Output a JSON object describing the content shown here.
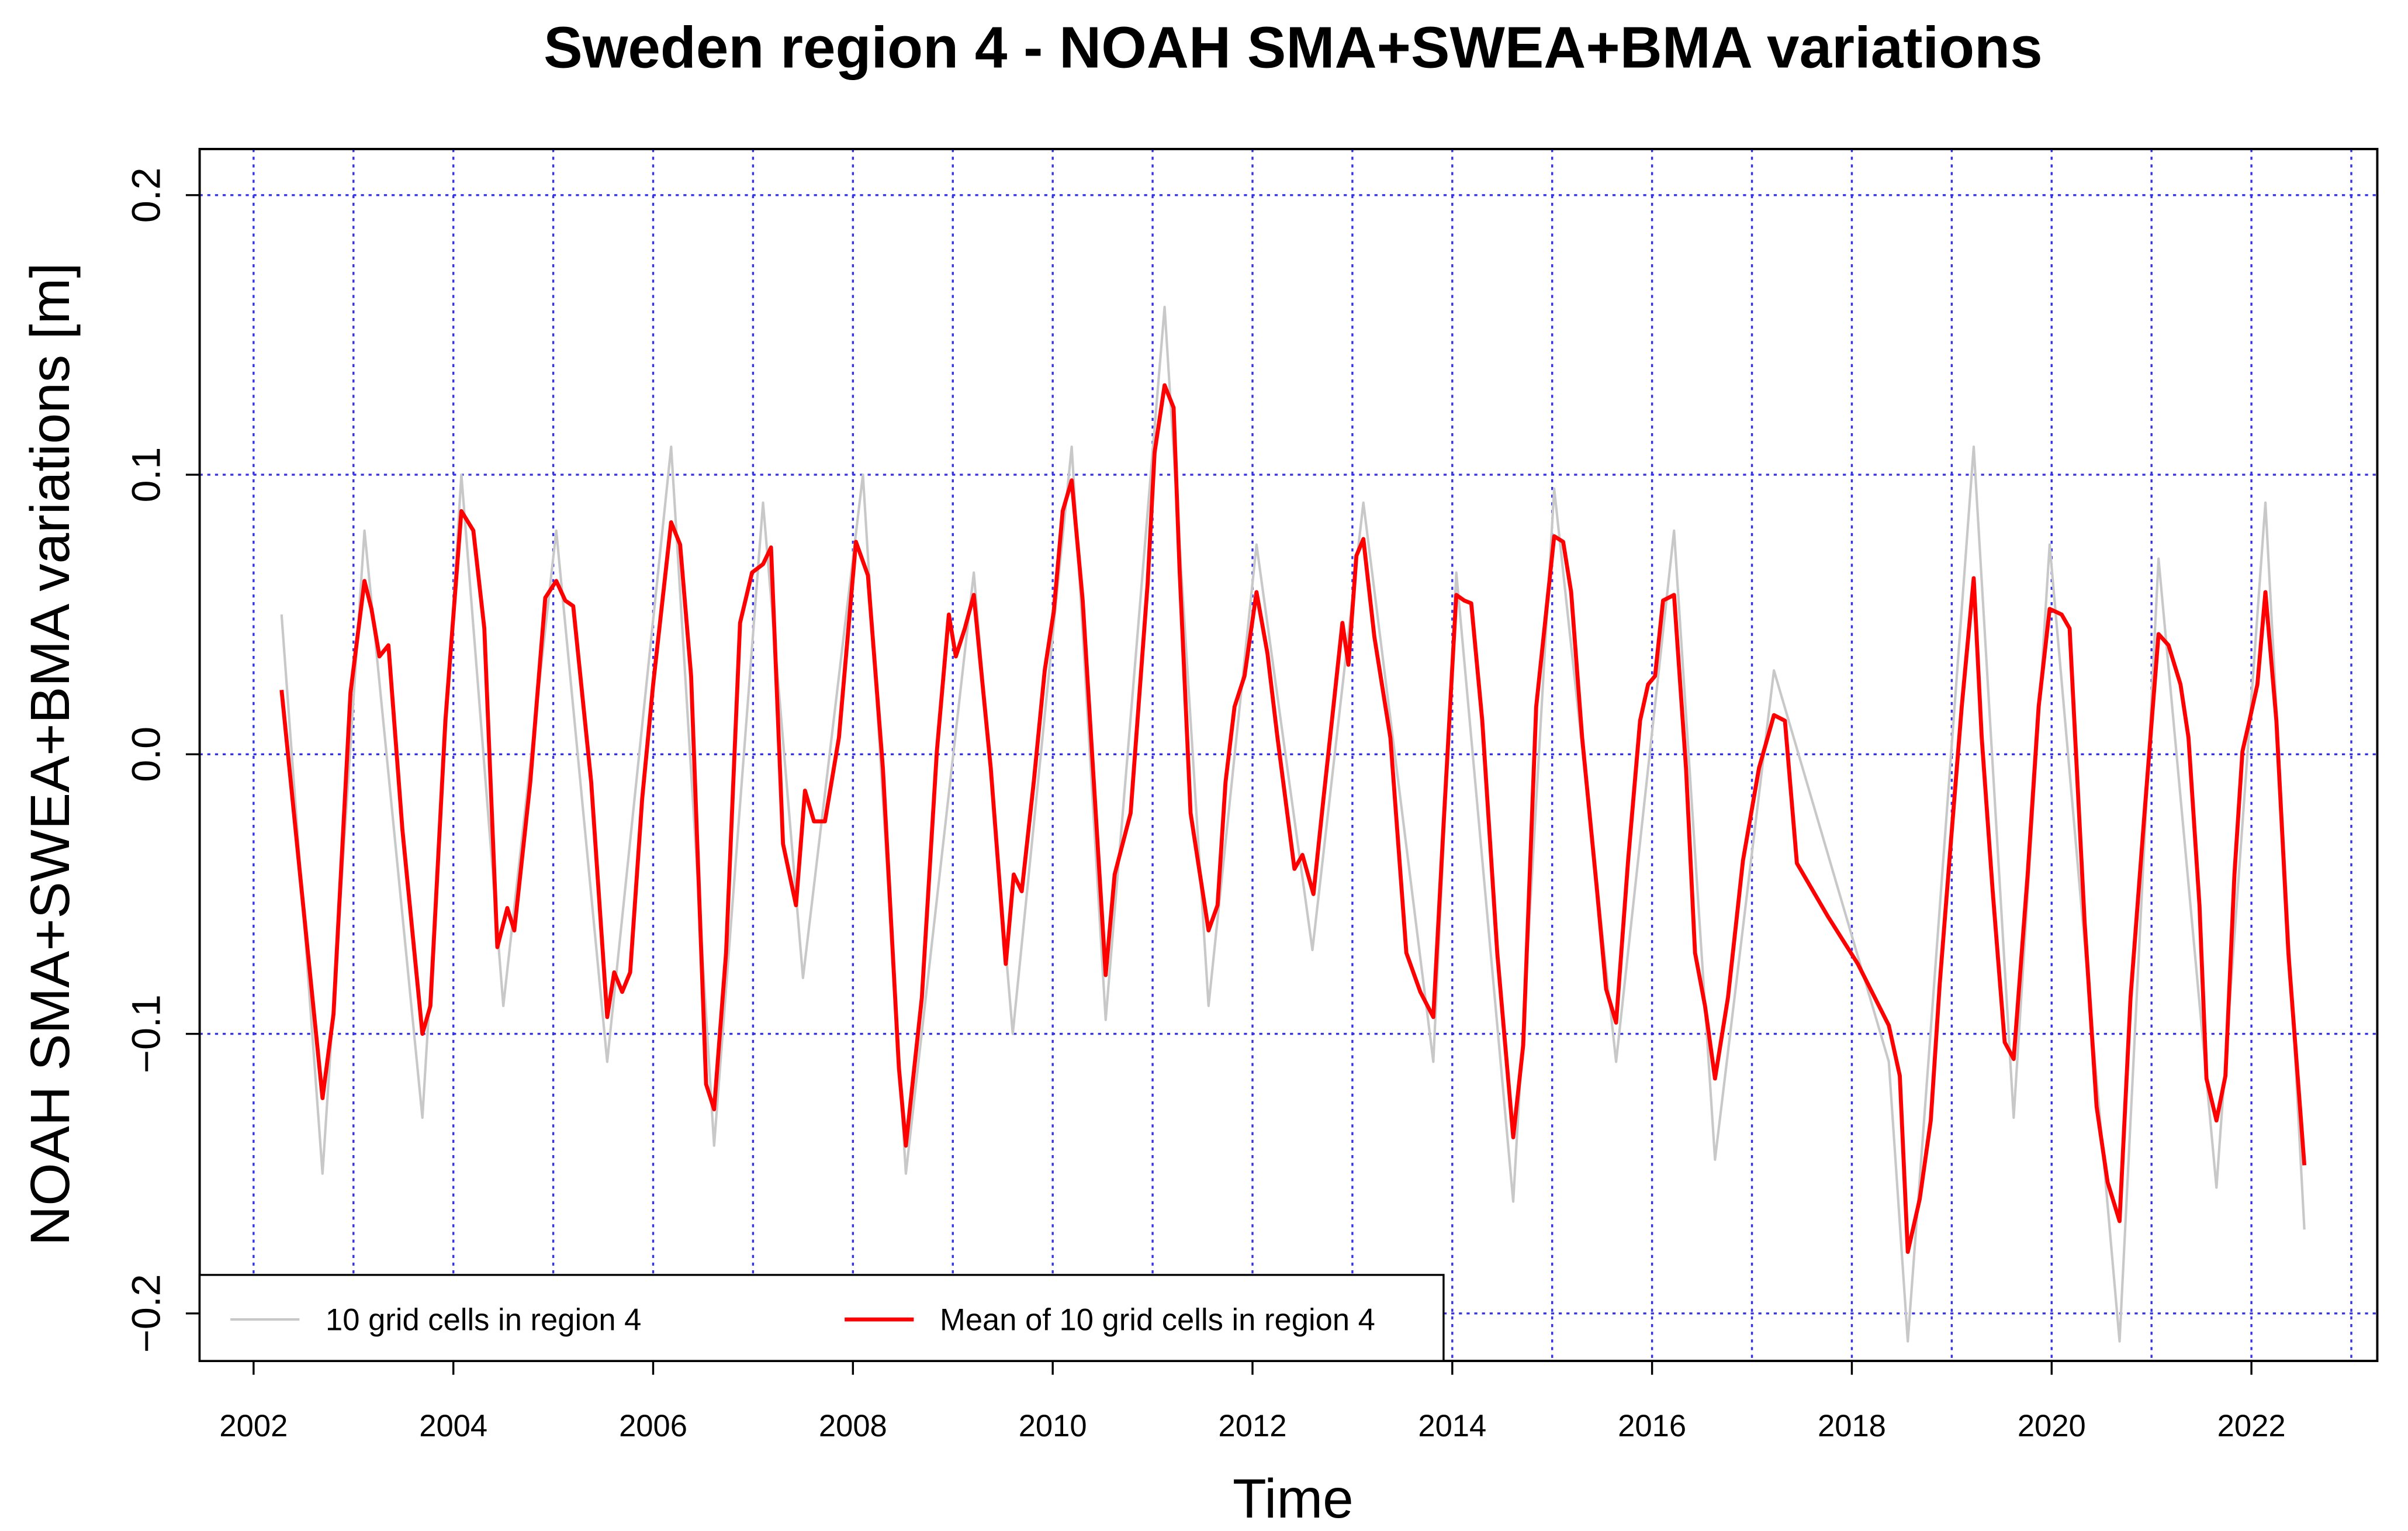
{
  "chart_data": {
    "type": "line",
    "title": "Sweden region 4 - NOAH SMA+SWEA+BMA variations",
    "x_label": "Time",
    "y_label": "NOAH SMA+SWEA+BMA variations [m]",
    "xlim": [
      2001.46,
      2023.26
    ],
    "ylim": [
      -0.217,
      0.2165
    ],
    "xticks": [
      2002,
      2004,
      2006,
      2008,
      2010,
      2012,
      2014,
      2016,
      2018,
      2020,
      2022
    ],
    "x_grid": [
      2002,
      2003,
      2004,
      2005,
      2006,
      2007,
      2008,
      2009,
      2010,
      2011,
      2012,
      2013,
      2014,
      2015,
      2016,
      2017,
      2018,
      2019,
      2020,
      2021,
      2022,
      2023
    ],
    "yticks": [
      {
        "value": -0.2,
        "label": "−0.2"
      },
      {
        "value": -0.1,
        "label": "−0.1"
      },
      {
        "value": 0,
        "label": "0.0"
      },
      0.1,
      0.2
    ],
    "grid": true,
    "grid_color": "#3333ee",
    "legend": "bottom-left",
    "series": [
      {
        "name": "10 grid cells in region 4",
        "color": "#c8c8c8",
        "x": [
          2002.28,
          2002.69,
          2003.11,
          2003.69,
          2004.08,
          2004.5,
          2005.03,
          2005.54,
          2006.18,
          2006.61,
          2007.1,
          2007.5,
          2008.1,
          2008.53,
          2009.21,
          2009.6,
          2010.19,
          2010.53,
          2011.12,
          2011.56,
          2012.04,
          2012.6,
          2013.11,
          2013.81,
          2014.04,
          2014.61,
          2015.02,
          2015.64,
          2016.22,
          2016.63,
          2017.22,
          2018.37,
          2018.56,
          2019.22,
          2019.62,
          2019.98,
          2020.68,
          2021.07,
          2021.65,
          2022.14,
          2022.53
        ],
        "values": [
          0.05,
          -0.15,
          0.08,
          -0.13,
          0.1,
          -0.09,
          0.08,
          -0.11,
          0.11,
          -0.14,
          0.09,
          -0.08,
          0.1,
          -0.15,
          0.065,
          -0.1,
          0.11,
          -0.095,
          0.16,
          -0.09,
          0.075,
          -0.07,
          0.09,
          -0.11,
          0.065,
          -0.16,
          0.095,
          -0.11,
          0.08,
          -0.145,
          0.03,
          -0.11,
          -0.21,
          0.11,
          -0.13,
          0.075,
          -0.21,
          0.07,
          -0.155,
          0.09,
          -0.17
        ]
      },
      {
        "name": "Mean of 10 grid cells in region 4",
        "color": "#ff0000",
        "x": [
          2002.28,
          2002.69,
          2002.8,
          2002.97,
          2003.11,
          2003.18,
          2003.26,
          2003.35,
          2003.49,
          2003.69,
          2003.77,
          2003.92,
          2004.08,
          2004.2,
          2004.31,
          2004.44,
          2004.54,
          2004.61,
          2004.77,
          2004.92,
          2005.03,
          2005.12,
          2005.2,
          2005.38,
          2005.54,
          2005.61,
          2005.69,
          2005.77,
          2005.89,
          2006.0,
          2006.18,
          2006.27,
          2006.38,
          2006.53,
          2006.61,
          2006.73,
          2006.87,
          2006.99,
          2007.1,
          2007.18,
          2007.3,
          2007.43,
          2007.52,
          2007.61,
          2007.72,
          2007.86,
          2008.03,
          2008.15,
          2008.3,
          2008.46,
          2008.53,
          2008.69,
          2008.84,
          2008.96,
          2009.03,
          2009.12,
          2009.21,
          2009.38,
          2009.53,
          2009.61,
          2009.69,
          2009.81,
          2009.92,
          2010.01,
          2010.1,
          2010.19,
          2010.3,
          2010.53,
          2010.62,
          2010.78,
          2010.95,
          2011.02,
          2011.12,
          2011.21,
          2011.27,
          2011.38,
          2011.56,
          2011.65,
          2011.73,
          2011.82,
          2011.92,
          2012.04,
          2012.15,
          2012.25,
          2012.42,
          2012.5,
          2012.61,
          2012.71,
          2012.81,
          2012.9,
          2012.96,
          2013.04,
          2013.11,
          2013.22,
          2013.38,
          2013.54,
          2013.68,
          2013.81,
          2013.91,
          2014.04,
          2014.12,
          2014.19,
          2014.3,
          2014.45,
          2014.61,
          2014.71,
          2014.84,
          2015.02,
          2015.11,
          2015.19,
          2015.3,
          2015.45,
          2015.54,
          2015.64,
          2015.76,
          2015.88,
          2015.96,
          2016.03,
          2016.11,
          2016.22,
          2016.34,
          2016.43,
          2016.53,
          2016.63,
          2016.76,
          2016.91,
          2017.07,
          2017.22,
          2017.33,
          2017.45,
          2017.76,
          2018.06,
          2018.37,
          2018.48,
          2018.56,
          2018.68,
          2018.79,
          2018.88,
          2018.99,
          2019.1,
          2019.22,
          2019.3,
          2019.41,
          2019.53,
          2019.62,
          2019.76,
          2019.87,
          2019.98,
          2020.1,
          2020.18,
          2020.33,
          2020.45,
          2020.56,
          2020.68,
          2020.79,
          2020.93,
          2021.07,
          2021.17,
          2021.29,
          2021.37,
          2021.48,
          2021.55,
          2021.65,
          2021.74,
          2021.83,
          2021.91,
          2021.98,
          2022.06,
          2022.14,
          2022.25,
          2022.37,
          2022.53
        ],
        "values": [
          0.023,
          -0.123,
          -0.093,
          0.022,
          0.062,
          0.052,
          0.035,
          0.039,
          -0.027,
          -0.1,
          -0.09,
          0.012,
          0.087,
          0.08,
          0.045,
          -0.069,
          -0.055,
          -0.063,
          -0.01,
          0.056,
          0.062,
          0.055,
          0.053,
          -0.01,
          -0.094,
          -0.078,
          -0.085,
          -0.078,
          -0.016,
          0.025,
          0.083,
          0.075,
          0.028,
          -0.118,
          -0.127,
          -0.071,
          0.047,
          0.065,
          0.068,
          0.074,
          -0.032,
          -0.054,
          -0.013,
          -0.024,
          -0.024,
          0.006,
          0.076,
          0.064,
          -0.005,
          -0.112,
          -0.14,
          -0.087,
          0.001,
          0.05,
          0.035,
          0.045,
          0.057,
          -0.005,
          -0.075,
          -0.043,
          -0.049,
          -0.01,
          0.03,
          0.051,
          0.087,
          0.098,
          0.055,
          -0.079,
          -0.043,
          -0.021,
          0.061,
          0.108,
          0.132,
          0.124,
          0.066,
          -0.021,
          -0.063,
          -0.054,
          -0.01,
          0.017,
          0.028,
          0.058,
          0.036,
          0.006,
          -0.041,
          -0.036,
          -0.05,
          -0.016,
          0.017,
          0.047,
          0.032,
          0.071,
          0.077,
          0.042,
          0.006,
          -0.071,
          -0.085,
          -0.094,
          -0.027,
          0.057,
          0.055,
          0.054,
          0.012,
          -0.071,
          -0.137,
          -0.104,
          0.017,
          0.078,
          0.076,
          0.058,
          0.006,
          -0.049,
          -0.084,
          -0.096,
          -0.038,
          0.012,
          0.025,
          0.028,
          0.055,
          0.057,
          -0.005,
          -0.071,
          -0.09,
          -0.116,
          -0.087,
          -0.038,
          -0.005,
          0.014,
          0.012,
          -0.039,
          -0.058,
          -0.075,
          -0.097,
          -0.115,
          -0.178,
          -0.159,
          -0.131,
          -0.082,
          -0.032,
          0.017,
          0.063,
          0.006,
          -0.049,
          -0.103,
          -0.109,
          -0.043,
          0.017,
          0.052,
          0.05,
          0.045,
          -0.06,
          -0.126,
          -0.153,
          -0.167,
          -0.087,
          -0.021,
          0.043,
          0.039,
          0.025,
          0.006,
          -0.054,
          -0.116,
          -0.131,
          -0.115,
          -0.043,
          0.001,
          0.012,
          0.025,
          0.058,
          0.012,
          -0.071,
          -0.147
        ]
      }
    ]
  }
}
